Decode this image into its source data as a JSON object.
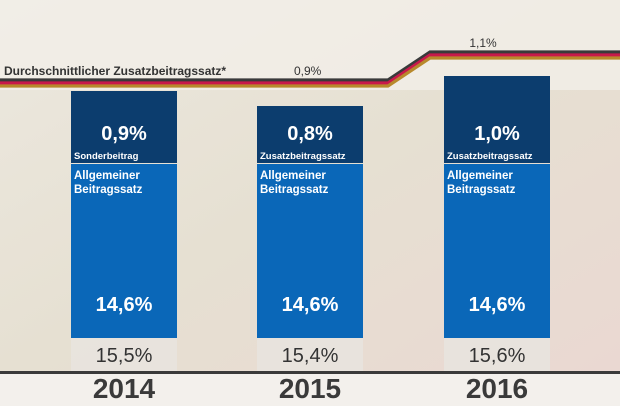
{
  "chart_data": {
    "type": "bar",
    "stacked": true,
    "categories": [
      "2014",
      "2015",
      "2016"
    ],
    "series": [
      {
        "name": "Allgemeiner Beitragssatz",
        "values": [
          14.6,
          14.6,
          14.6
        ],
        "labels": [
          "14,6%",
          "14,6%",
          "14,6%"
        ],
        "color": "#0a67b8"
      },
      {
        "name_per_bar": [
          "Sonderbeitrag",
          "Zusatzbeitragssatz",
          "Zusatzbeitragssatz"
        ],
        "values": [
          0.9,
          0.8,
          1.0
        ],
        "labels": [
          "0,9%",
          "0,8%",
          "1,0%"
        ],
        "color": "#0c3d6e"
      }
    ],
    "base_label_lines": [
      "Allgemeiner",
      "Beitragssatz"
    ],
    "totals": [
      "15,5%",
      "15,4%",
      "15,6%"
    ],
    "line": {
      "label": "Durchschnittlicher Zusatzbeitragssatz*",
      "values": [
        0.9,
        0.9,
        1.1
      ],
      "value_labels": [
        "0,9%",
        "1,1%"
      ],
      "colors": [
        "#3a3a3a",
        "#c8194b",
        "#b8892c"
      ]
    },
    "ylim": [
      0,
      15.6
    ]
  }
}
